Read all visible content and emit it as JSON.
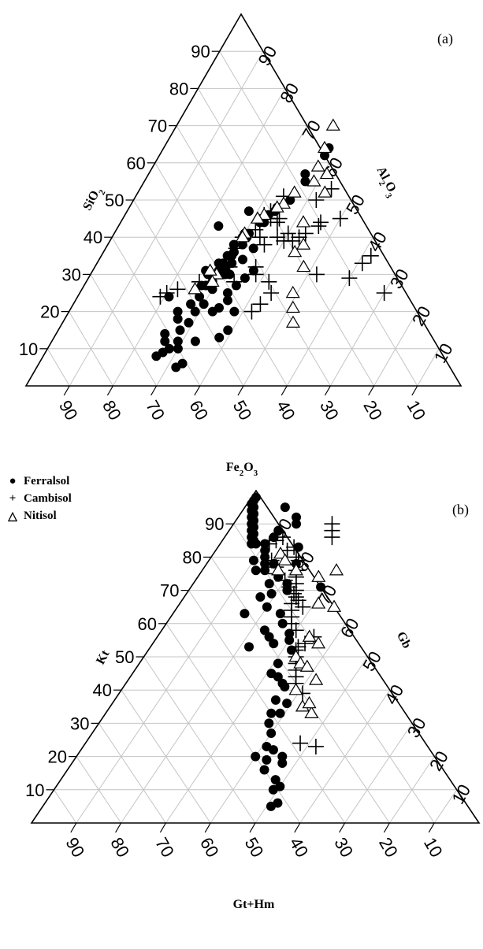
{
  "chart_data": [
    {
      "type": "scatter",
      "subtype": "ternary",
      "panel_label": "(a)",
      "axes": {
        "left": {
          "label": "SiO2",
          "ticks": [
            "10",
            "20",
            "30",
            "40",
            "50",
            "60",
            "70",
            "80",
            "90"
          ]
        },
        "right": {
          "label": "Al2O3",
          "ticks": [
            "10",
            "20",
            "30",
            "40",
            "50",
            "60",
            "70",
            "80",
            "90"
          ]
        },
        "bottom": {
          "label": "Fe2O3",
          "ticks": [
            "90",
            "80",
            "70",
            "60",
            "50",
            "40",
            "30",
            "20",
            "10"
          ]
        }
      },
      "grid": true,
      "series": [
        {
          "name": "Ferralsol",
          "marker": "filled-circle",
          "x": [
            38,
            38,
            36,
            37,
            36,
            34,
            34,
            33,
            32,
            33,
            32,
            31,
            30,
            31,
            30,
            30,
            29,
            31,
            29,
            28,
            29,
            28,
            34,
            33,
            32,
            30,
            31,
            29,
            28,
            37,
            36,
            35,
            34,
            35,
            34,
            33,
            38,
            39,
            38,
            33,
            29,
            30,
            28,
            27,
            26,
            33,
            32,
            30,
            30,
            28,
            29,
            27,
            25,
            26,
            30,
            29,
            27,
            27,
            31,
            29,
            29,
            28,
            26,
            29,
            28,
            25,
            26,
            30,
            28,
            23,
            21
          ],
          "y": [
            62,
            64,
            57,
            55,
            50,
            48,
            47,
            46,
            45,
            44,
            44,
            41,
            40,
            38,
            36,
            35,
            33,
            33,
            31,
            30,
            28,
            27,
            37,
            34,
            30,
            32,
            30,
            28,
            27,
            31,
            29,
            27,
            25,
            23,
            21,
            20,
            20,
            15,
            13,
            12,
            12,
            10,
            10,
            9,
            8,
            6,
            5,
            26,
            22,
            24,
            20,
            22,
            20,
            18,
            36,
            32,
            30,
            27,
            40,
            38,
            35,
            33,
            31,
            17,
            15,
            14,
            12,
            41,
            47,
            43,
            24
          ]
        },
        {
          "name": "Cambisol",
          "marker": "plus",
          "x": [
            70,
            62,
            61,
            60,
            52,
            50,
            46,
            44,
            42,
            46,
            44,
            43,
            42,
            40,
            40,
            38,
            36,
            36,
            36,
            34,
            33,
            32,
            32,
            34,
            32,
            30,
            44,
            43,
            42,
            42,
            38,
            37,
            34,
            34,
            31,
            30,
            26,
            22,
            20,
            19
          ],
          "y": [
            25,
            35,
            33,
            29,
            30,
            45,
            44,
            53,
            50,
            43,
            41,
            40,
            39,
            41,
            39,
            40,
            45,
            44,
            38,
            51,
            47,
            46,
            44,
            45,
            42,
            40,
            25,
            22,
            20,
            28,
            30,
            32,
            40,
            28,
            32,
            37,
            28,
            26,
            25,
            24
          ],
          "legend_marker": "+"
        },
        {
          "name": "Nitisol",
          "marker": "open-triangle",
          "x": [
            53,
            51,
            49,
            48,
            45,
            44,
            42,
            43,
            41,
            39,
            38,
            37,
            36,
            36,
            35,
            34,
            32,
            31,
            30,
            30,
            29,
            29,
            26,
            27
          ],
          "y": [
            17,
            21,
            25,
            32,
            38,
            36,
            44,
            52,
            57,
            55,
            59,
            64,
            70,
            52,
            49,
            48,
            46,
            45,
            41,
            40,
            30,
            28,
            26,
            31
          ]
        }
      ]
    },
    {
      "type": "scatter",
      "subtype": "ternary",
      "panel_label": "(b)",
      "axes": {
        "left": {
          "label": "Kt",
          "ticks": [
            "10",
            "20",
            "30",
            "40",
            "50",
            "60",
            "70",
            "80",
            "90"
          ]
        },
        "right": {
          "label": "Gb",
          "ticks": [
            "10",
            "20",
            "30",
            "40",
            "50",
            "60",
            "70",
            "80",
            "90"
          ]
        },
        "bottom": {
          "label": "Gt+Hm",
          "ticks": [
            "90",
            "80",
            "70",
            "60",
            "50",
            "40",
            "30",
            "20",
            "10"
          ]
        }
      },
      "grid": true,
      "series": [
        {
          "name": "Ferralsol",
          "marker": "filled-circle",
          "x": [
            1,
            1,
            1,
            2,
            2,
            3,
            3,
            4,
            4,
            5,
            5,
            6,
            6,
            7,
            7,
            8,
            29,
            9,
            13,
            14,
            11,
            11,
            10,
            11,
            12,
            10,
            12,
            13,
            18,
            17,
            15,
            14,
            18,
            20,
            21,
            22,
            19,
            17,
            16,
            20,
            24,
            26,
            23,
            25,
            27,
            22,
            29,
            30,
            32,
            31,
            31,
            33,
            35,
            36,
            36,
            39,
            39,
            37,
            38,
            40,
            40,
            41,
            43,
            44,
            43,
            46,
            47,
            48,
            49,
            50,
            51,
            52
          ],
          "y": [
            98,
            97,
            96,
            95,
            94,
            93,
            92,
            91,
            90,
            89,
            88,
            87,
            86,
            85,
            84,
            84,
            71,
            95,
            92,
            90,
            88,
            86,
            84,
            82,
            80,
            79,
            76,
            78,
            74,
            72,
            78,
            76,
            83,
            78,
            72,
            70,
            69,
            68,
            63,
            65,
            63,
            60,
            58,
            56,
            54,
            53,
            57,
            55,
            52,
            48,
            45,
            44,
            42,
            41,
            37,
            36,
            33,
            33,
            30,
            27,
            20,
            23,
            22,
            16,
            19,
            20,
            18,
            13,
            10,
            11,
            5,
            6
          ]
        },
        {
          "name": "Cambisol",
          "marker": "plus",
          "x": [
            11,
            12,
            13,
            16,
            17,
            19,
            20,
            21,
            22,
            23,
            24,
            22,
            23,
            24,
            25,
            25,
            26,
            27,
            28,
            30,
            33,
            33,
            34,
            35,
            34,
            35,
            36,
            37,
            38,
            41,
            14,
            16,
            17,
            20,
            22,
            24,
            26,
            28,
            48,
            52
          ],
          "y": [
            84,
            85,
            86,
            82,
            83,
            80,
            79,
            76,
            74,
            72,
            70,
            90,
            88,
            86,
            68,
            66,
            64,
            62,
            60,
            58,
            52,
            53,
            54,
            56,
            50,
            48,
            46,
            44,
            42,
            39,
            79,
            77,
            75,
            73,
            71,
            69,
            67,
            65,
            24,
            23
          ]
        },
        {
          "name": "Nitisol",
          "marker": "open-triangle",
          "x": [
            15,
            17,
            21,
            37,
            17,
            30,
            27,
            31,
            34,
            34,
            36,
            38,
            42,
            43,
            39,
            46,
            35,
            44
          ],
          "y": [
            81,
            76,
            76,
            54,
            79,
            76,
            74,
            66,
            56,
            50,
            48,
            47,
            43,
            35,
            40,
            33,
            65,
            36
          ]
        }
      ]
    }
  ],
  "legend": {
    "entries": [
      {
        "label": "Ferralsol",
        "symbol": "●"
      },
      {
        "label": "Cambisol",
        "symbol": "+"
      },
      {
        "label": "Nitisol",
        "symbol": "△"
      }
    ]
  }
}
